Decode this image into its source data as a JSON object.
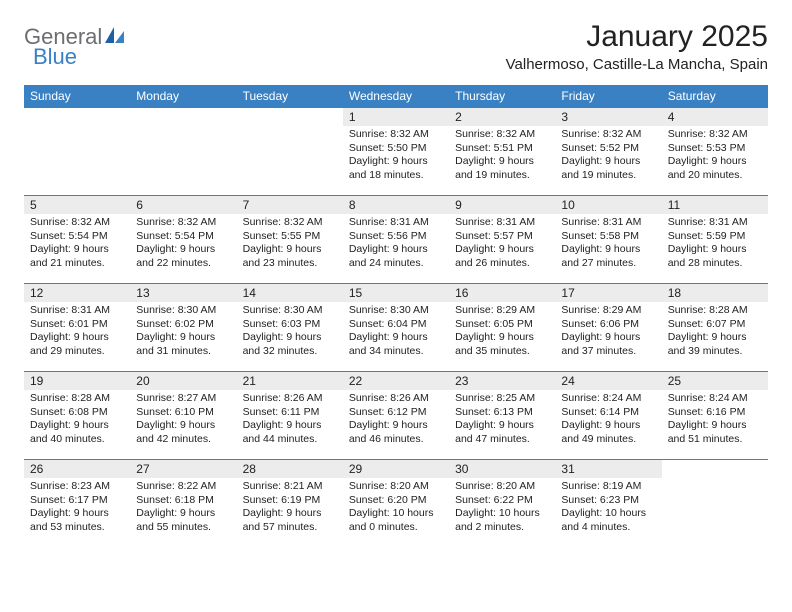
{
  "brand": {
    "part1": "General",
    "part2": "Blue"
  },
  "title": "January 2025",
  "location": "Valhermoso, Castille-La Mancha, Spain",
  "colors": {
    "header_bg": "#3a81c3",
    "header_text": "#ffffff",
    "daynum_bg": "#ececec",
    "border": "#3a81c3",
    "text": "#222222",
    "logo_gray": "#6d6e71",
    "logo_blue": "#3a81c3",
    "page_bg": "#ffffff"
  },
  "weekdays": [
    "Sunday",
    "Monday",
    "Tuesday",
    "Wednesday",
    "Thursday",
    "Friday",
    "Saturday"
  ],
  "weeks": [
    [
      null,
      null,
      null,
      {
        "n": "1",
        "sr": "8:32 AM",
        "ss": "5:50 PM",
        "dl": "9 hours and 18 minutes."
      },
      {
        "n": "2",
        "sr": "8:32 AM",
        "ss": "5:51 PM",
        "dl": "9 hours and 19 minutes."
      },
      {
        "n": "3",
        "sr": "8:32 AM",
        "ss": "5:52 PM",
        "dl": "9 hours and 19 minutes."
      },
      {
        "n": "4",
        "sr": "8:32 AM",
        "ss": "5:53 PM",
        "dl": "9 hours and 20 minutes."
      }
    ],
    [
      {
        "n": "5",
        "sr": "8:32 AM",
        "ss": "5:54 PM",
        "dl": "9 hours and 21 minutes."
      },
      {
        "n": "6",
        "sr": "8:32 AM",
        "ss": "5:54 PM",
        "dl": "9 hours and 22 minutes."
      },
      {
        "n": "7",
        "sr": "8:32 AM",
        "ss": "5:55 PM",
        "dl": "9 hours and 23 minutes."
      },
      {
        "n": "8",
        "sr": "8:31 AM",
        "ss": "5:56 PM",
        "dl": "9 hours and 24 minutes."
      },
      {
        "n": "9",
        "sr": "8:31 AM",
        "ss": "5:57 PM",
        "dl": "9 hours and 26 minutes."
      },
      {
        "n": "10",
        "sr": "8:31 AM",
        "ss": "5:58 PM",
        "dl": "9 hours and 27 minutes."
      },
      {
        "n": "11",
        "sr": "8:31 AM",
        "ss": "5:59 PM",
        "dl": "9 hours and 28 minutes."
      }
    ],
    [
      {
        "n": "12",
        "sr": "8:31 AM",
        "ss": "6:01 PM",
        "dl": "9 hours and 29 minutes."
      },
      {
        "n": "13",
        "sr": "8:30 AM",
        "ss": "6:02 PM",
        "dl": "9 hours and 31 minutes."
      },
      {
        "n": "14",
        "sr": "8:30 AM",
        "ss": "6:03 PM",
        "dl": "9 hours and 32 minutes."
      },
      {
        "n": "15",
        "sr": "8:30 AM",
        "ss": "6:04 PM",
        "dl": "9 hours and 34 minutes."
      },
      {
        "n": "16",
        "sr": "8:29 AM",
        "ss": "6:05 PM",
        "dl": "9 hours and 35 minutes."
      },
      {
        "n": "17",
        "sr": "8:29 AM",
        "ss": "6:06 PM",
        "dl": "9 hours and 37 minutes."
      },
      {
        "n": "18",
        "sr": "8:28 AM",
        "ss": "6:07 PM",
        "dl": "9 hours and 39 minutes."
      }
    ],
    [
      {
        "n": "19",
        "sr": "8:28 AM",
        "ss": "6:08 PM",
        "dl": "9 hours and 40 minutes."
      },
      {
        "n": "20",
        "sr": "8:27 AM",
        "ss": "6:10 PM",
        "dl": "9 hours and 42 minutes."
      },
      {
        "n": "21",
        "sr": "8:26 AM",
        "ss": "6:11 PM",
        "dl": "9 hours and 44 minutes."
      },
      {
        "n": "22",
        "sr": "8:26 AM",
        "ss": "6:12 PM",
        "dl": "9 hours and 46 minutes."
      },
      {
        "n": "23",
        "sr": "8:25 AM",
        "ss": "6:13 PM",
        "dl": "9 hours and 47 minutes."
      },
      {
        "n": "24",
        "sr": "8:24 AM",
        "ss": "6:14 PM",
        "dl": "9 hours and 49 minutes."
      },
      {
        "n": "25",
        "sr": "8:24 AM",
        "ss": "6:16 PM",
        "dl": "9 hours and 51 minutes."
      }
    ],
    [
      {
        "n": "26",
        "sr": "8:23 AM",
        "ss": "6:17 PM",
        "dl": "9 hours and 53 minutes."
      },
      {
        "n": "27",
        "sr": "8:22 AM",
        "ss": "6:18 PM",
        "dl": "9 hours and 55 minutes."
      },
      {
        "n": "28",
        "sr": "8:21 AM",
        "ss": "6:19 PM",
        "dl": "9 hours and 57 minutes."
      },
      {
        "n": "29",
        "sr": "8:20 AM",
        "ss": "6:20 PM",
        "dl": "10 hours and 0 minutes."
      },
      {
        "n": "30",
        "sr": "8:20 AM",
        "ss": "6:22 PM",
        "dl": "10 hours and 2 minutes."
      },
      {
        "n": "31",
        "sr": "8:19 AM",
        "ss": "6:23 PM",
        "dl": "10 hours and 4 minutes."
      },
      null
    ]
  ],
  "labels": {
    "sunrise": "Sunrise:",
    "sunset": "Sunset:",
    "daylight": "Daylight:"
  }
}
